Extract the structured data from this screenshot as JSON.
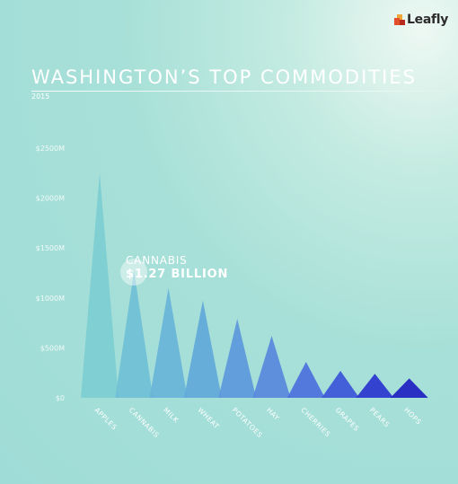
{
  "brand": {
    "name": "Leafly",
    "colors": [
      "#f0a73a",
      "#e2502b",
      "#b82a1d",
      "#2c2c2c"
    ]
  },
  "header": {
    "title": "WASHINGTON’S TOP COMMODITIES",
    "subtitle": "2015"
  },
  "callout": {
    "label": "CANNABIS",
    "value": "$1.27 BILLION"
  },
  "chart_data": {
    "type": "bar",
    "title": "WASHINGTON’S TOP COMMODITIES",
    "subtitle": "2015",
    "categories": [
      "APPLES",
      "CANNABIS",
      "MILK",
      "WHEAT",
      "POTATOES",
      "HAY",
      "CHERRIES",
      "GRAPES",
      "PEARS",
      "HOPS"
    ],
    "values": [
      2250,
      1270,
      1100,
      975,
      790,
      620,
      360,
      270,
      240,
      195
    ],
    "ylim": [
      0,
      2500
    ],
    "yticks": [
      0,
      500,
      1000,
      1500,
      2000,
      2500
    ],
    "ytick_labels": [
      "$0",
      "$500M",
      "$1000M",
      "$1500M",
      "$2000M",
      "$2500M"
    ],
    "mark_shape": "triangle",
    "colors": [
      "#7ccdd3",
      "#6fbfd6",
      "#68b3d8",
      "#62a8da",
      "#5d98dc",
      "#5888dd",
      "#4c70dd",
      "#3c55d8",
      "#2a34cf",
      "#2020c2"
    ],
    "grid": false
  }
}
